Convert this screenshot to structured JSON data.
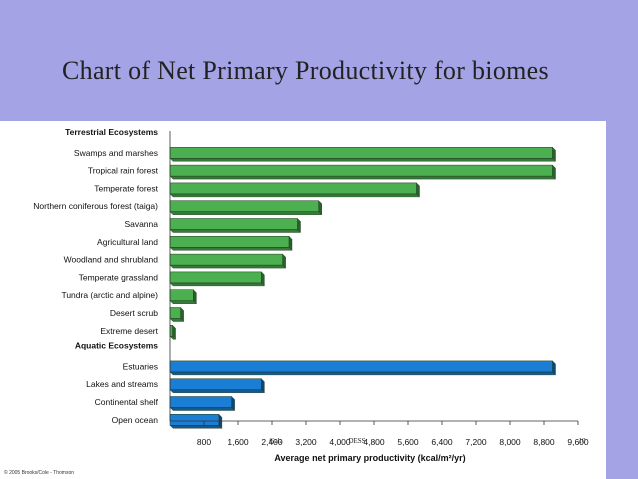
{
  "slide": {
    "title": "Chart of Net Primary Productivity for biomes"
  },
  "figure": {
    "credit": "© 2005 Brooks/Cole - Thomson",
    "overlay_marks": [
      "Gala",
      "DESS",
      "10"
    ]
  },
  "colors": {
    "background": "#a3a3e6",
    "terrestrial": "#4caf50",
    "aquatic": "#1a7fd4"
  },
  "chart_data": {
    "type": "bar",
    "orientation": "horizontal",
    "title": "",
    "xlabel": "Average net primary productivity (kcal/m²/yr)",
    "ylabel": "",
    "xlim": [
      0,
      9600
    ],
    "xticks": [
      800,
      1600,
      2400,
      3200,
      4000,
      4800,
      5600,
      6400,
      7200,
      8000,
      8800,
      9600
    ],
    "xtick_labels": [
      "800",
      "1,600",
      "2,400",
      "3,200",
      "4,000",
      "4,800",
      "5,600",
      "6,400",
      "7,200",
      "8,000",
      "8,800",
      "9,600"
    ],
    "groups": [
      {
        "name": "Terrestrial Ecosystems",
        "categories": [
          "Swamps and marshes",
          "Tropical rain forest",
          "Temperate forest",
          "Northern coniferous forest (taiga)",
          "Savanna",
          "Agricultural land",
          "Woodland and shrubland",
          "Temperate grassland",
          "Tundra (arctic and alpine)",
          "Desert scrub",
          "Extreme desert"
        ],
        "values": [
          9000,
          9000,
          5800,
          3500,
          3000,
          2800,
          2650,
          2150,
          550,
          250,
          60
        ]
      },
      {
        "name": "Aquatic Ecosystems",
        "categories": [
          "Estuaries",
          "Lakes and streams",
          "Continental shelf",
          "Open ocean"
        ],
        "values": [
          9000,
          2150,
          1450,
          1150
        ]
      }
    ]
  }
}
